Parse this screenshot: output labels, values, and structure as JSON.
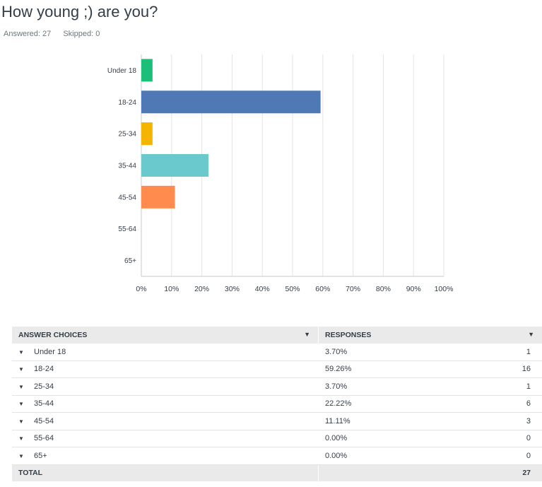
{
  "question": {
    "title": "How young ;) are you?",
    "answered": "Answered: 27",
    "skipped": "Skipped: 0"
  },
  "chart_data": {
    "type": "bar",
    "orientation": "horizontal",
    "categories": [
      "Under 18",
      "18-24",
      "25-34",
      "35-44",
      "45-54",
      "55-64",
      "65+"
    ],
    "values": [
      3.7,
      59.26,
      3.7,
      22.22,
      11.11,
      0.0,
      0.0
    ],
    "colors": [
      "#1cbf78",
      "#4f79b5",
      "#f4b400",
      "#6ac9cc",
      "#ff8b4f",
      "#cccccc",
      "#cccccc"
    ],
    "xlim": [
      0,
      100
    ],
    "x_ticks": [
      "0%",
      "10%",
      "20%",
      "30%",
      "40%",
      "50%",
      "60%",
      "70%",
      "80%",
      "90%",
      "100%"
    ],
    "grid": true,
    "title": "",
    "xlabel": "",
    "ylabel": ""
  },
  "table": {
    "header_choices": "ANSWER CHOICES",
    "header_responses": "RESPONSES",
    "rows": [
      {
        "choice": "Under 18",
        "percent": "3.70%",
        "count": "1"
      },
      {
        "choice": "18-24",
        "percent": "59.26%",
        "count": "16"
      },
      {
        "choice": "25-34",
        "percent": "3.70%",
        "count": "1"
      },
      {
        "choice": "35-44",
        "percent": "22.22%",
        "count": "6"
      },
      {
        "choice": "45-54",
        "percent": "11.11%",
        "count": "3"
      },
      {
        "choice": "55-64",
        "percent": "0.00%",
        "count": "0"
      },
      {
        "choice": "65+",
        "percent": "0.00%",
        "count": "0"
      }
    ],
    "total_label": "TOTAL",
    "total_count": "27"
  }
}
